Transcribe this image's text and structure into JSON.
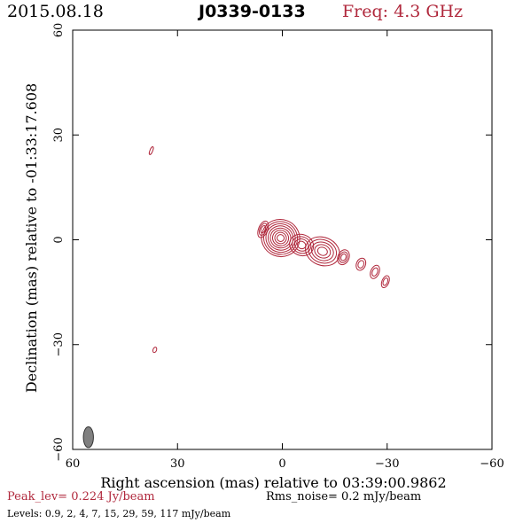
{
  "header": {
    "date": "2015.08.18",
    "source": "J0339-0133",
    "freq": "Freq: 4.3 GHz"
  },
  "footer": {
    "peak": "Peak_lev=  0.224 Jy/beam",
    "rms": "Rms_noise=  0.2 mJy/beam",
    "levels": "Levels: 0.9,   2,   4,   7,  15,  29,  59, 117 mJy/beam"
  },
  "colors": {
    "contour": "#b0283c",
    "beam": "#808080",
    "frame": "#000000"
  },
  "chart_data": {
    "type": "contour",
    "title": "J0339-0133",
    "xlabel": "Right ascension (mas) relative to 03:39:00.9862",
    "ylabel": "Declination (mas) relative to -01:33:17.608",
    "xlim": [
      60,
      -60
    ],
    "ylim": [
      -60,
      60
    ],
    "xticks": [
      60,
      30,
      0,
      -30,
      -60
    ],
    "yticks": [
      -60,
      -30,
      0,
      30,
      60
    ],
    "x_tick_labels": [
      "60",
      "30",
      "0",
      "−30",
      "−60"
    ],
    "y_tick_labels": [
      "−60",
      "−30",
      "0",
      "30",
      "60"
    ],
    "contour_levels_mJy": [
      0.9,
      2,
      4,
      7,
      15,
      29,
      59,
      117
    ],
    "peak_Jy_per_beam": 0.224,
    "rms_mJy_per_beam": 0.2,
    "components": [
      {
        "x": 0.5,
        "y": 0.5,
        "rx": 5.5,
        "ry": 5.3,
        "levels": 8
      },
      {
        "x": -5.5,
        "y": -1.5,
        "rx": 3.5,
        "ry": 3,
        "levels": 4
      },
      {
        "x": -11.5,
        "y": -3.3,
        "rx": 5,
        "ry": 4,
        "levels": 5
      },
      {
        "x": 5.5,
        "y": 3,
        "rx": 1.3,
        "ry": 2.5,
        "levels": 3
      },
      {
        "x": -17.5,
        "y": -5,
        "rx": 1.6,
        "ry": 2.2,
        "levels": 3
      },
      {
        "x": -22.5,
        "y": -7,
        "rx": 1.3,
        "ry": 1.8,
        "levels": 2
      },
      {
        "x": -26.5,
        "y": -9.2,
        "rx": 1.2,
        "ry": 2,
        "levels": 2
      },
      {
        "x": -29.5,
        "y": -12,
        "rx": 1,
        "ry": 1.8,
        "levels": 2
      },
      {
        "x": 37.5,
        "y": 25.5,
        "rx": 0.4,
        "ry": 1.2,
        "levels": 1
      },
      {
        "x": 36.5,
        "y": -31.5,
        "rx": 0.5,
        "ry": 0.8,
        "levels": 1
      }
    ],
    "beam": {
      "x": 55.5,
      "y": -56.5,
      "major_mas": 3.5,
      "minor_mas": 1.8
    }
  }
}
